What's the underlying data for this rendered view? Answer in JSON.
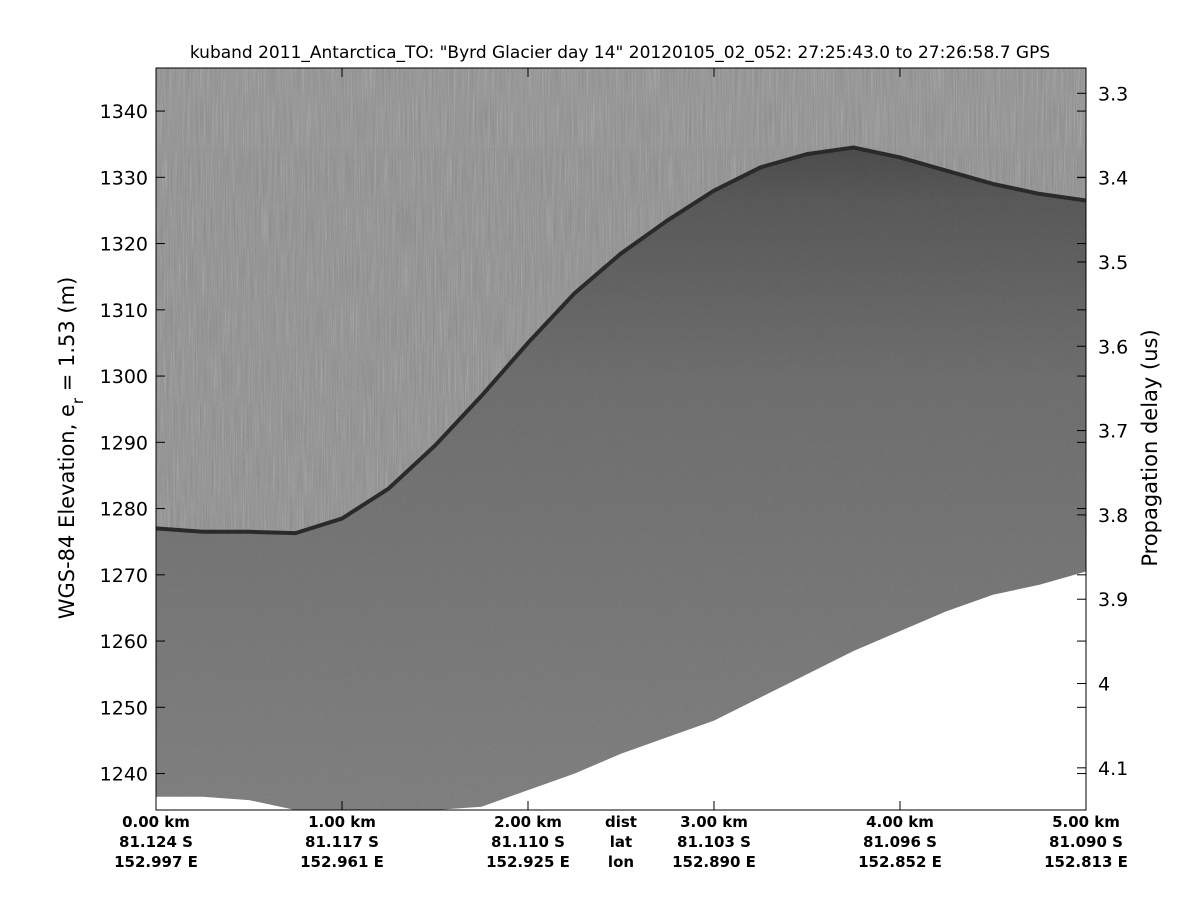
{
  "chart_data": {
    "type": "heatmap",
    "title": "kuband 2011_Antarctica_TO: \"Byrd Glacier day 14\"  20120105_02_052: 27:25:43.0 to 27:26:58.7 GPS",
    "ylabel_main": "WGS-84 Elevation, e",
    "ylabel_sub": "r",
    "ylabel_tail": " = 1.53 (m)",
    "y2label": "Propagation delay (us)",
    "colormap": "grayscale",
    "grid": false,
    "xlim_km": [
      0,
      5
    ],
    "ylim_m": [
      1234.5,
      1346.5
    ],
    "y2lim_us": [
      3.27,
      4.15
    ],
    "left_ticks": [
      1340,
      1330,
      1320,
      1310,
      1300,
      1290,
      1280,
      1270,
      1260,
      1250,
      1240
    ],
    "left_tick_labels": [
      "1340",
      "1330",
      "1320",
      "1310",
      "1300",
      "1290",
      "1280",
      "1270",
      "1260",
      "1250",
      "1240"
    ],
    "right_ticks": [
      3.3,
      3.4,
      3.5,
      3.6,
      3.7,
      3.8,
      3.9,
      4.0,
      4.1
    ],
    "right_tick_labels": [
      "3.3",
      "3.4",
      "3.5",
      "3.6",
      "3.7",
      "3.8",
      "3.9",
      "4",
      "4.1"
    ],
    "x_ticks": [
      {
        "km": 0,
        "dist": "0.00 km",
        "lat": "81.124 S",
        "lon": "152.997 E"
      },
      {
        "km": 1,
        "dist": "1.00 km",
        "lat": "81.117 S",
        "lon": "152.961 E"
      },
      {
        "km": 2,
        "dist": "2.00 km",
        "lat": "81.110 S",
        "lon": "152.925 E"
      },
      {
        "km": 3,
        "dist": "3.00 km",
        "lat": "81.103 S",
        "lon": "152.890 E"
      },
      {
        "km": 4,
        "dist": "4.00 km",
        "lat": "81.096 S",
        "lon": "152.852 E"
      },
      {
        "km": 5,
        "dist": "5.00 km",
        "lat": "81.090 S",
        "lon": "152.813 E"
      }
    ],
    "x_row_labels": {
      "km": 2.5,
      "dist": "dist",
      "lat": "lat",
      "lon": "lon"
    },
    "surface_profile": {
      "x_km": [
        0,
        0.25,
        0.5,
        0.75,
        1.0,
        1.25,
        1.5,
        1.75,
        2.0,
        2.25,
        2.5,
        2.75,
        3.0,
        3.25,
        3.5,
        3.75,
        4.0,
        4.25,
        4.5,
        4.75,
        5.0
      ],
      "elevation_m": [
        1277,
        1276.5,
        1276.5,
        1276.3,
        1278.5,
        1283,
        1289.5,
        1297,
        1305,
        1312.5,
        1318.5,
        1323.5,
        1328,
        1331.5,
        1333.5,
        1334.5,
        1333,
        1331,
        1329,
        1327.5,
        1326.5
      ]
    },
    "data_floor": {
      "x_km": [
        0,
        0.25,
        0.5,
        0.75,
        1.0,
        1.25,
        1.5,
        1.75,
        2.0,
        2.25,
        2.5,
        2.75,
        3.0,
        3.25,
        3.5,
        3.75,
        4.0,
        4.25,
        4.5,
        4.75,
        5.0
      ],
      "elevation_m": [
        1236.5,
        1236.5,
        1236,
        1234.5,
        1234.5,
        1234.5,
        1234.5,
        1235,
        1237.5,
        1240,
        1243,
        1245.5,
        1248,
        1251.5,
        1255,
        1258.5,
        1261.5,
        1264.5,
        1267,
        1268.5,
        1270.5
      ]
    }
  }
}
